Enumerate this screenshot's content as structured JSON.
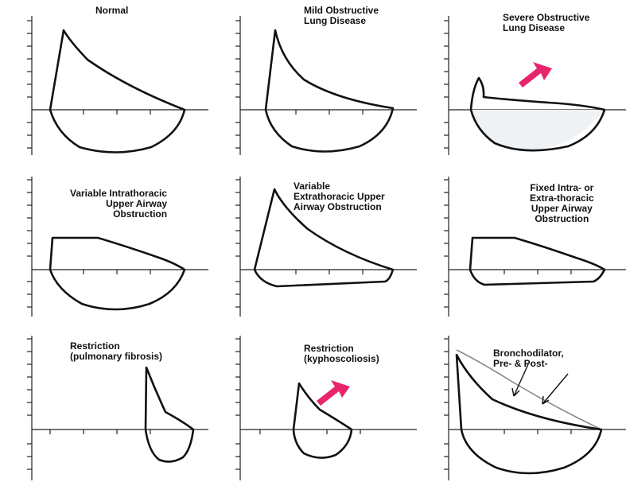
{
  "panels": [
    {
      "id": "normal",
      "title": "Normal"
    },
    {
      "id": "mild-obstructive",
      "title": "Mild Obstructive\nLung Disease"
    },
    {
      "id": "severe-obstructive",
      "title": "Severe Obstructive\nLung Disease"
    },
    {
      "id": "variable-intrathoracic",
      "title": "Variable Intrathoracic\nUpper Airway\nObstruction"
    },
    {
      "id": "variable-extrathoracic",
      "title": "Variable\nExtrathoracic Upper\nAirway Obstruction"
    },
    {
      "id": "fixed-obstruction",
      "title": "Fixed Intra- or\nExtra-thoracic\nUpper Airway\nObstruction"
    },
    {
      "id": "restriction-fibrosis",
      "title": "Restriction\n(pulmonary fibrosis)"
    },
    {
      "id": "restriction-kyphoscoliosis",
      "title": "Restriction\n(kyphoscoliosis)"
    },
    {
      "id": "bronchodilator",
      "title": "Bronchodilator,\nPre- & Post-"
    }
  ],
  "colors": {
    "highlight_arrow": "#e8246c",
    "curve": "#111111",
    "background": "#ffffff"
  }
}
